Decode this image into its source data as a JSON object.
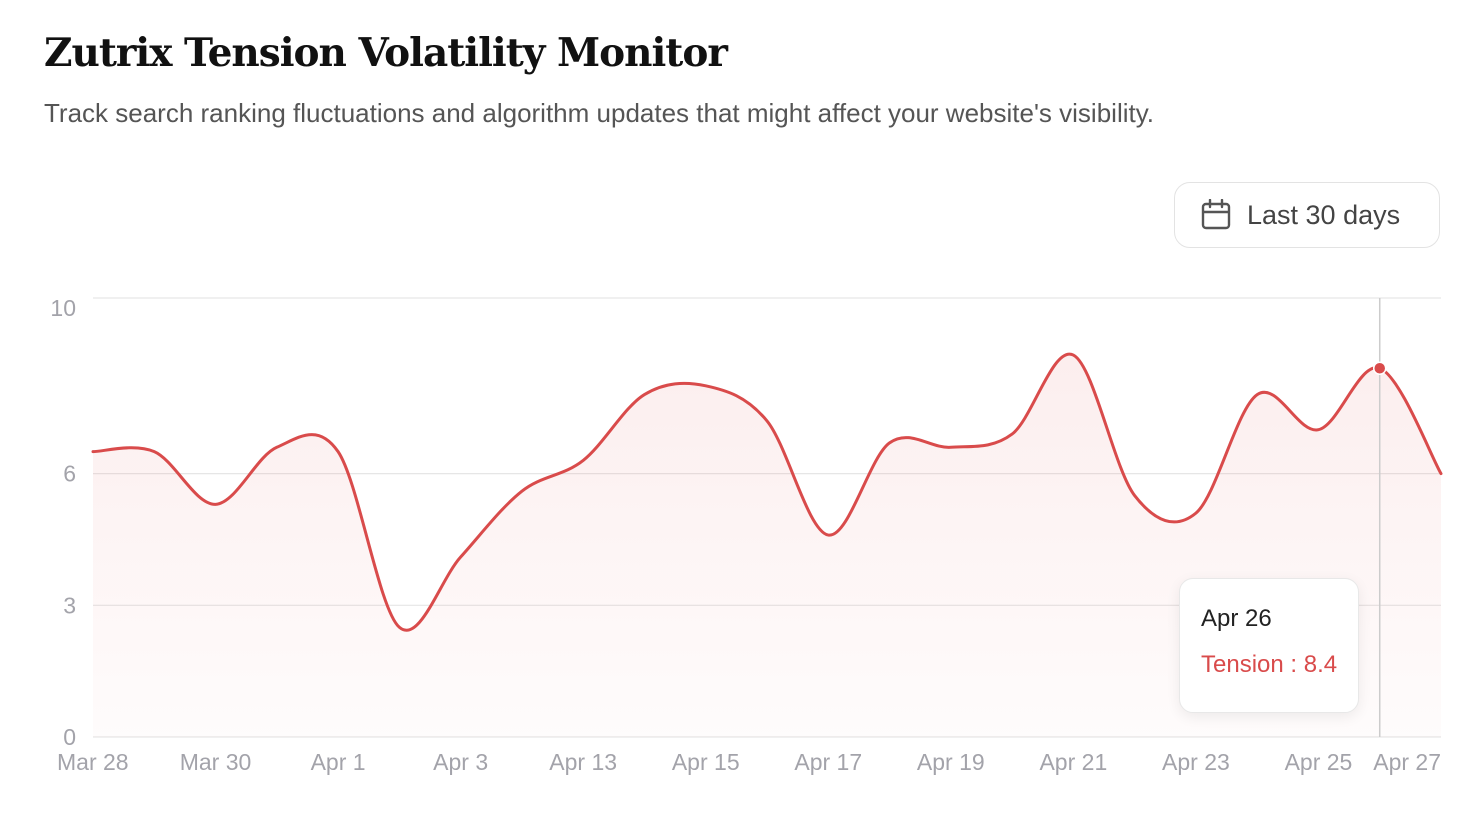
{
  "header": {
    "title": "Zutrix Tension Volatility Monitor",
    "subtitle": "Track search ranking fluctuations and algorithm updates that might affect your website's visibility."
  },
  "date_range": {
    "label": "Last 30 days",
    "icon": "calendar-icon"
  },
  "colors": {
    "line": "#d94b4b",
    "grid": "#e6e6e6",
    "axis_text": "#a3a3aa",
    "crosshair": "#cccccc"
  },
  "tooltip": {
    "date": "Apr 26",
    "series_label": "Tension",
    "value": "8.4"
  },
  "chart_data": {
    "type": "area",
    "title": "Zutrix Tension Volatility Monitor",
    "series": [
      {
        "name": "Tension",
        "points": [
          {
            "x": 0,
            "y": 6.5
          },
          {
            "x": 1,
            "y": 6.5
          },
          {
            "x": 2,
            "y": 5.3
          },
          {
            "x": 3,
            "y": 6.6
          },
          {
            "x": 4,
            "y": 6.5
          },
          {
            "x": 5,
            "y": 2.5
          },
          {
            "x": 6,
            "y": 4.1
          },
          {
            "x": 7,
            "y": 5.6
          },
          {
            "x": 8,
            "y": 6.3
          },
          {
            "x": 9,
            "y": 7.8
          },
          {
            "x": 10,
            "y": 8.0
          },
          {
            "x": 11,
            "y": 7.2
          },
          {
            "x": 12,
            "y": 4.6
          },
          {
            "x": 13,
            "y": 6.7
          },
          {
            "x": 14,
            "y": 6.6
          },
          {
            "x": 15,
            "y": 6.9
          },
          {
            "x": 16,
            "y": 8.7
          },
          {
            "x": 17,
            "y": 5.5
          },
          {
            "x": 18,
            "y": 5.1
          },
          {
            "x": 19,
            "y": 7.8
          },
          {
            "x": 20,
            "y": 7.0
          },
          {
            "x": 21,
            "y": 8.4
          },
          {
            "x": 22,
            "y": 6.0
          }
        ]
      }
    ],
    "x_ticks": [
      {
        "x": 0,
        "label": "Mar 28"
      },
      {
        "x": 2,
        "label": "Mar 30"
      },
      {
        "x": 4,
        "label": "Apr 1"
      },
      {
        "x": 6,
        "label": "Apr 3"
      },
      {
        "x": 8,
        "label": "Apr 13"
      },
      {
        "x": 10,
        "label": "Apr 15"
      },
      {
        "x": 12,
        "label": "Apr 17"
      },
      {
        "x": 14,
        "label": "Apr 19"
      },
      {
        "x": 16,
        "label": "Apr 21"
      },
      {
        "x": 18,
        "label": "Apr 23"
      },
      {
        "x": 20,
        "label": "Apr 25"
      },
      {
        "x": 21.45,
        "label": "Apr 27"
      }
    ],
    "y_ticks": [
      0,
      3,
      6,
      10
    ],
    "ylim": [
      0,
      10
    ],
    "xlim": [
      0,
      22
    ],
    "highlight": {
      "x": 21,
      "label": "Apr 26",
      "value": 8.4
    },
    "xlabel": "",
    "ylabel": "",
    "grid": true
  }
}
